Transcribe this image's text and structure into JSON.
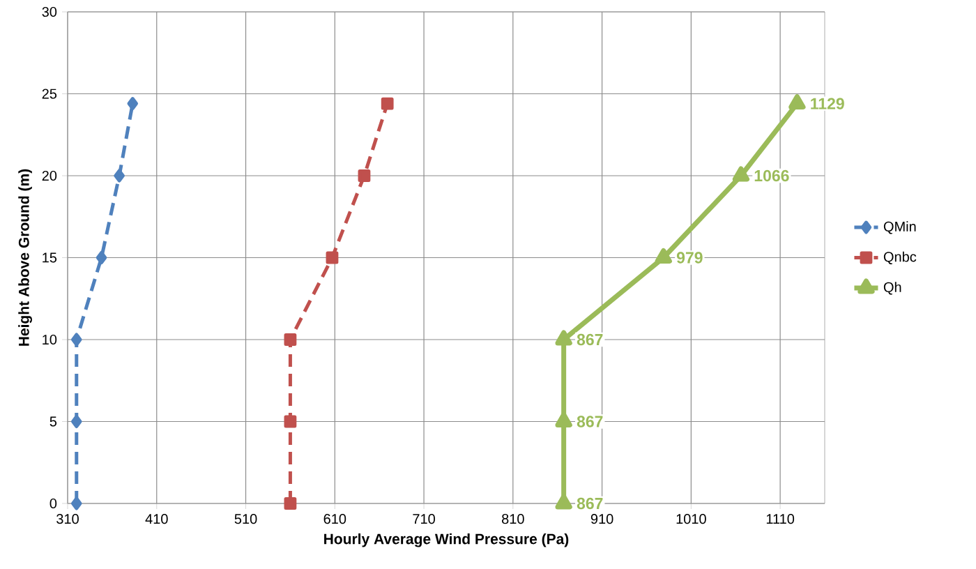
{
  "chart_data": {
    "type": "line",
    "xlabel": "Hourly Average Wind Pressure (Pa)",
    "ylabel": "Height Above Ground (m)",
    "xlim": [
      310,
      1160
    ],
    "xticks": [
      310,
      410,
      510,
      610,
      710,
      810,
      910,
      1010,
      1110
    ],
    "ylim": [
      0,
      30
    ],
    "yticks": [
      0,
      5,
      10,
      15,
      20,
      25,
      30
    ],
    "grid": true,
    "legend": "right",
    "series": [
      {
        "name": "QMin",
        "color": "#4f81bd",
        "marker": "diamond",
        "line_style": "dashed",
        "x": [
          320,
          320,
          320,
          348,
          368,
          383
        ],
        "values": [
          0,
          5,
          10,
          15,
          20,
          24.4
        ]
      },
      {
        "name": "Qnbc",
        "color": "#c0504d",
        "marker": "square",
        "line_style": "dashed",
        "x": [
          560,
          560,
          560,
          607,
          643,
          669
        ],
        "values": [
          0,
          5,
          10,
          15,
          20,
          24.4
        ]
      },
      {
        "name": "Qh",
        "color": "#9bbb59",
        "marker": "triangle",
        "line_style": "solid",
        "x": [
          867,
          867,
          867,
          979,
          1066,
          1129
        ],
        "values": [
          0,
          5,
          10,
          15,
          20,
          24.4
        ]
      }
    ],
    "annotations": [
      {
        "text": "867",
        "x": 867,
        "y": 0
      },
      {
        "text": "867",
        "x": 867,
        "y": 5
      },
      {
        "text": "867",
        "x": 867,
        "y": 10
      },
      {
        "text": "979",
        "x": 979,
        "y": 15
      },
      {
        "text": "1066",
        "x": 1066,
        "y": 20
      },
      {
        "text": "1129",
        "x": 1129,
        "y": 24.4
      }
    ]
  }
}
